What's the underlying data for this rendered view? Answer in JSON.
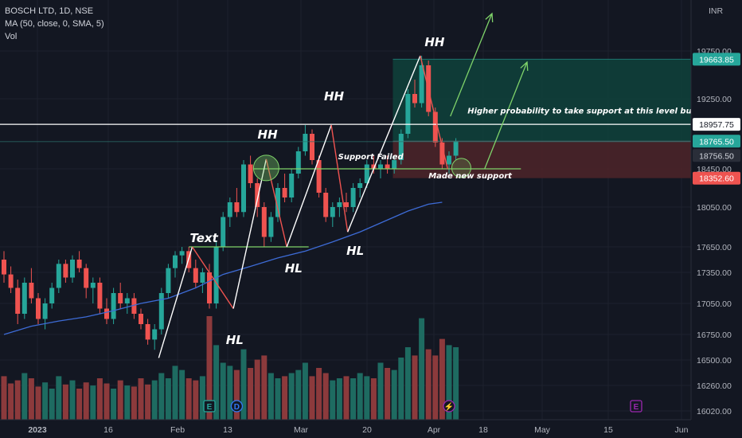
{
  "header": {
    "symbol_line": "BOSCH LTD, 1D, NSE",
    "ma_line": "MA (50, close, 0, SMA, 5)",
    "vol_line": "Vol",
    "currency": "INR"
  },
  "colors": {
    "background": "#131722",
    "up": "#26a69a",
    "down": "#ef5350",
    "ma": "#3d6bd6",
    "vol_up": "#1e6b61",
    "vol_down": "#8c3a3c",
    "grid": "#1e222d",
    "trend": "#ffffff",
    "projection": "#7fd36a",
    "support_line": "#7fd36a",
    "tp_zone": "#0f3f3a",
    "sl_zone": "#4a2329",
    "event_dividend": "#3179f5",
    "event_earnings": "#26a69a",
    "event_split": "#9c27b0"
  },
  "chart_data": {
    "type": "candlestick",
    "title": "BOSCH LTD, 1D, NSE",
    "y_axis": {
      "ticks": [
        16020,
        16260,
        16500,
        16750,
        17050,
        17350,
        17650,
        18050,
        18450,
        19250,
        19750
      ],
      "tick_labels": [
        "16020.00",
        "16260.00",
        "16500.00",
        "16750.00",
        "17050.00",
        "17350.00",
        "17650.00",
        "18050.00",
        "18450.00",
        "19250.00",
        "19750.00"
      ],
      "currency": "INR"
    },
    "x_axis": {
      "tick_labels": [
        "2023",
        "16",
        "Feb",
        "13",
        "Mar",
        "20",
        "Apr",
        "18",
        "May",
        "15",
        "Jun"
      ]
    },
    "price_tags": [
      {
        "value": 19663.85,
        "label": "19663.85",
        "style": "up"
      },
      {
        "value": 18957.75,
        "label": "18957.75",
        "style": "white"
      },
      {
        "value": 18765.5,
        "label": "18765.50",
        "style": "up"
      },
      {
        "value": 18756.5,
        "label": "18756.50",
        "style": "grey"
      },
      {
        "value": 18352.6,
        "label": "18352.60",
        "style": "down"
      }
    ],
    "candles": [
      [
        17500,
        17600,
        17250,
        17330
      ],
      [
        17330,
        17420,
        17150,
        17200
      ],
      [
        17200,
        17280,
        16850,
        16950
      ],
      [
        16950,
        17300,
        16900,
        17250
      ],
      [
        17250,
        17400,
        17050,
        17100
      ],
      [
        17100,
        17150,
        16850,
        16900
      ],
      [
        16900,
        17100,
        16800,
        17050
      ],
      [
        17050,
        17250,
        17000,
        17200
      ],
      [
        17200,
        17500,
        17150,
        17450
      ],
      [
        17450,
        17500,
        17250,
        17300
      ],
      [
        17300,
        17550,
        17250,
        17500
      ],
      [
        17500,
        17600,
        17350,
        17400
      ],
      [
        17400,
        17450,
        17100,
        17200
      ],
      [
        17200,
        17300,
        17050,
        17250
      ],
      [
        17250,
        17300,
        16950,
        17000
      ],
      [
        17000,
        17100,
        16850,
        16900
      ],
      [
        16900,
        17200,
        16850,
        17150
      ],
      [
        17150,
        17250,
        17000,
        17050
      ],
      [
        17050,
        17150,
        16950,
        17100
      ],
      [
        17100,
        17150,
        16900,
        16950
      ],
      [
        16950,
        17000,
        16800,
        16850
      ],
      [
        16850,
        16900,
        16650,
        16700
      ],
      [
        16700,
        16850,
        16600,
        16800
      ],
      [
        16800,
        17200,
        16750,
        17150
      ],
      [
        17150,
        17450,
        17100,
        17400
      ],
      [
        17400,
        17600,
        17300,
        17550
      ],
      [
        17550,
        17650,
        17450,
        17600
      ],
      [
        17600,
        17650,
        17350,
        17400
      ],
      [
        17400,
        17500,
        17200,
        17250
      ],
      [
        17250,
        17400,
        17150,
        17350
      ],
      [
        17350,
        17450,
        17000,
        17050
      ],
      [
        17050,
        17700,
        17000,
        17650
      ],
      [
        17650,
        18000,
        17600,
        17950
      ],
      [
        17950,
        18150,
        17850,
        18100
      ],
      [
        18100,
        18250,
        17950,
        18000
      ],
      [
        18000,
        18550,
        17950,
        18500
      ],
      [
        18500,
        18600,
        18250,
        18300
      ],
      [
        18300,
        18350,
        17950,
        18050
      ],
      [
        18050,
        18100,
        17650,
        17750
      ],
      [
        17750,
        18000,
        17700,
        17950
      ],
      [
        17950,
        18300,
        17900,
        18250
      ],
      [
        18250,
        18400,
        18100,
        18150
      ],
      [
        18150,
        18450,
        18100,
        18400
      ],
      [
        18400,
        18700,
        18350,
        18650
      ],
      [
        18650,
        18950,
        18600,
        18850
      ],
      [
        18850,
        18900,
        18500,
        18550
      ],
      [
        18550,
        18600,
        18150,
        18200
      ],
      [
        18200,
        18250,
        17900,
        17950
      ],
      [
        17950,
        18100,
        17850,
        18050
      ],
      [
        18050,
        18150,
        17950,
        18100
      ],
      [
        18100,
        18200,
        18000,
        18050
      ],
      [
        18050,
        18300,
        18000,
        18250
      ],
      [
        18250,
        18350,
        18150,
        18300
      ],
      [
        18300,
        18550,
        18250,
        18500
      ],
      [
        18500,
        18600,
        18400,
        18450
      ],
      [
        18450,
        18550,
        18350,
        18500
      ],
      [
        18500,
        18600,
        18400,
        18450
      ],
      [
        18450,
        18600,
        18400,
        18550
      ],
      [
        18550,
        18900,
        18500,
        18850
      ],
      [
        18850,
        19350,
        18800,
        19300
      ],
      [
        19300,
        19450,
        19150,
        19200
      ],
      [
        19200,
        19700,
        19150,
        19600
      ],
      [
        19600,
        19650,
        19050,
        19100
      ],
      [
        19100,
        19150,
        18700,
        18750
      ],
      [
        18750,
        18800,
        18450,
        18500
      ],
      [
        18500,
        18650,
        18400,
        18600
      ],
      [
        18600,
        18800,
        18550,
        18765.5
      ]
    ],
    "volumes": [
      0.42,
      0.35,
      0.38,
      0.45,
      0.4,
      0.32,
      0.36,
      0.3,
      0.42,
      0.34,
      0.38,
      0.3,
      0.36,
      0.33,
      0.4,
      0.35,
      0.3,
      0.38,
      0.33,
      0.32,
      0.4,
      0.34,
      0.38,
      0.45,
      0.4,
      0.52,
      0.48,
      0.4,
      0.38,
      0.42,
      1.0,
      0.72,
      0.55,
      0.52,
      0.48,
      0.68,
      0.5,
      0.58,
      0.62,
      0.45,
      0.4,
      0.42,
      0.45,
      0.48,
      0.55,
      0.42,
      0.5,
      0.45,
      0.38,
      0.4,
      0.42,
      0.4,
      0.45,
      0.42,
      0.4,
      0.55,
      0.5,
      0.48,
      0.6,
      0.7,
      0.62,
      0.98,
      0.68,
      0.62,
      0.78,
      0.72,
      0.7
    ],
    "ma_50": [
      [
        0,
        16750
      ],
      [
        4,
        16830
      ],
      [
        8,
        16880
      ],
      [
        12,
        16920
      ],
      [
        16,
        16980
      ],
      [
        20,
        17050
      ],
      [
        24,
        17100
      ],
      [
        28,
        17200
      ],
      [
        32,
        17330
      ],
      [
        36,
        17420
      ],
      [
        40,
        17520
      ],
      [
        44,
        17600
      ],
      [
        48,
        17700
      ],
      [
        52,
        17800
      ],
      [
        56,
        17920
      ],
      [
        59,
        18010
      ],
      [
        62,
        18080
      ],
      [
        64,
        18100
      ]
    ],
    "annotations": {
      "hh1": "HH",
      "hh2": "HH",
      "hh3": "HH",
      "hl1": "HL",
      "hl2": "HL",
      "hl3": "HL",
      "text": "Text",
      "support_failed": "Support Failed",
      "made_new_support": "Made new support",
      "higher_prob": "Higher probability to take support at this level but it failed"
    },
    "events": [
      {
        "type": "earnings",
        "label": "E",
        "bar_index": 30
      },
      {
        "type": "dividend",
        "label": "D",
        "bar_index": 34
      },
      {
        "type": "split",
        "label": "⚡",
        "bar_index": 65
      },
      {
        "type": "earnings_future",
        "label": "E",
        "x_label_after": "15"
      }
    ]
  }
}
